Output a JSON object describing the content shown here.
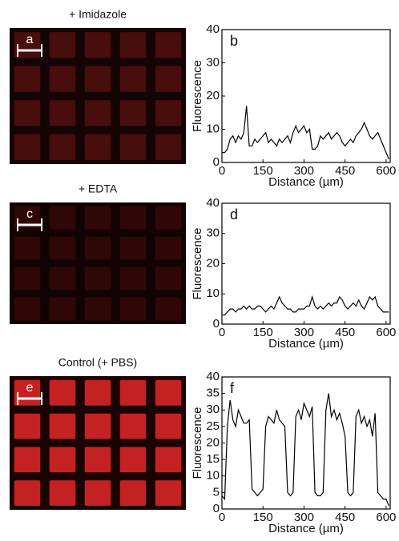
{
  "images": [
    {
      "title": "+ Imidazole",
      "label": "a"
    },
    {
      "title": "+ EDTA",
      "label": "c"
    },
    {
      "title": "Control (+ PBS)",
      "label": "e"
    }
  ],
  "chart_data": [
    {
      "type": "line",
      "panel_label": "b",
      "xlabel": "Distance (µm)",
      "ylabel": "Fluorescence",
      "color": "#000000",
      "x": [
        0,
        10,
        20,
        30,
        40,
        50,
        60,
        70,
        80,
        90,
        100,
        110,
        120,
        130,
        140,
        150,
        160,
        170,
        180,
        190,
        200,
        210,
        220,
        230,
        240,
        250,
        260,
        270,
        280,
        290,
        300,
        310,
        320,
        330,
        340,
        350,
        360,
        370,
        380,
        390,
        400,
        410,
        420,
        430,
        440,
        450,
        460,
        470,
        480,
        490,
        500,
        510,
        520,
        530,
        540,
        550,
        560,
        570,
        580,
        590,
        600,
        610
      ],
      "values": [
        3,
        3,
        4,
        7,
        8,
        6,
        8,
        7,
        9,
        17,
        5,
        5,
        7,
        6,
        7,
        8,
        9,
        6,
        7,
        6,
        5,
        7,
        6,
        7,
        8,
        6,
        9,
        11,
        9,
        10,
        11,
        9,
        10,
        4,
        4,
        5,
        8,
        7,
        8,
        9,
        7,
        8,
        9,
        8,
        6,
        5,
        6,
        7,
        6,
        8,
        9,
        10,
        12,
        10,
        8,
        7,
        8,
        9,
        7,
        5,
        3,
        1
      ],
      "xlim": [
        0,
        615
      ],
      "ylim": [
        0,
        40
      ],
      "xticks": [
        0,
        150,
        300,
        450,
        600
      ],
      "yticks": [
        0,
        10,
        20,
        30,
        40
      ]
    },
    {
      "type": "line",
      "panel_label": "d",
      "xlabel": "Distance (µm)",
      "ylabel": "Fluorescence",
      "color": "#000000",
      "x": [
        0,
        10,
        20,
        30,
        40,
        50,
        60,
        70,
        80,
        90,
        100,
        110,
        120,
        130,
        140,
        150,
        160,
        170,
        180,
        190,
        200,
        210,
        220,
        230,
        240,
        250,
        260,
        270,
        280,
        290,
        300,
        310,
        320,
        330,
        340,
        350,
        360,
        370,
        380,
        390,
        400,
        410,
        420,
        430,
        440,
        450,
        460,
        470,
        480,
        490,
        500,
        510,
        520,
        530,
        540,
        550,
        560,
        570,
        580,
        590,
        600,
        610
      ],
      "values": [
        3,
        3,
        4,
        5,
        5,
        4,
        5,
        5,
        6,
        5,
        6,
        5,
        5,
        6,
        6,
        5,
        4,
        5,
        6,
        5,
        7,
        9,
        7,
        6,
        5,
        5,
        4,
        4,
        5,
        5,
        5,
        6,
        6,
        9,
        6,
        5,
        6,
        5,
        6,
        7,
        6,
        7,
        7,
        9,
        8,
        6,
        5,
        6,
        7,
        6,
        8,
        6,
        5,
        7,
        9,
        8,
        9,
        6,
        5,
        4,
        4,
        4
      ],
      "xlim": [
        0,
        615
      ],
      "ylim": [
        0,
        40
      ],
      "xticks": [
        0,
        150,
        300,
        450,
        600
      ],
      "yticks": [
        0,
        10,
        20,
        30,
        40
      ]
    },
    {
      "type": "line",
      "panel_label": "f",
      "xlabel": "Distance (µm)",
      "ylabel": "Fluorescence",
      "color": "#000000",
      "x": [
        0,
        10,
        20,
        30,
        40,
        50,
        60,
        70,
        80,
        90,
        100,
        110,
        120,
        130,
        140,
        150,
        160,
        170,
        180,
        190,
        200,
        210,
        220,
        230,
        240,
        250,
        260,
        270,
        280,
        290,
        300,
        310,
        320,
        330,
        340,
        350,
        360,
        370,
        380,
        390,
        400,
        410,
        420,
        430,
        440,
        450,
        460,
        470,
        480,
        490,
        500,
        510,
        520,
        530,
        540,
        550,
        560,
        570,
        580,
        590,
        600,
        610
      ],
      "values": [
        4,
        3,
        25,
        33,
        27,
        25,
        30,
        28,
        26,
        26,
        27,
        6,
        5,
        4,
        5,
        6,
        25,
        28,
        27,
        26,
        30,
        27,
        26,
        25,
        5,
        4,
        5,
        28,
        30,
        27,
        32,
        30,
        28,
        31,
        5,
        4,
        4,
        5,
        30,
        35,
        28,
        30,
        27,
        29,
        26,
        22,
        5,
        4,
        5,
        28,
        30,
        26,
        28,
        25,
        27,
        22,
        29,
        5,
        4,
        3,
        3,
        1
      ],
      "xlim": [
        0,
        615
      ],
      "ylim": [
        0,
        40
      ],
      "xticks": [
        0,
        150,
        300,
        450,
        600
      ],
      "yticks": [
        0,
        5,
        10,
        15,
        20,
        25,
        30,
        35,
        40
      ]
    }
  ]
}
